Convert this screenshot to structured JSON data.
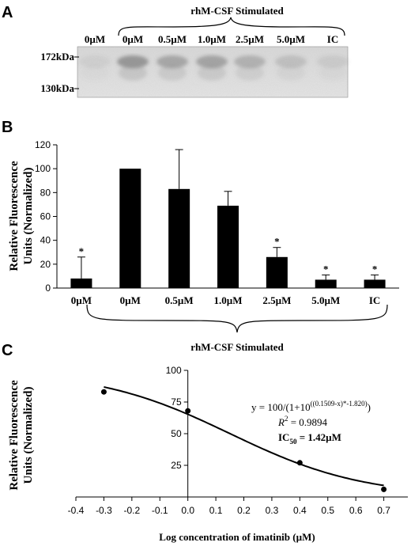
{
  "panelA": {
    "letter": "A",
    "group_title": "rhM-CSF Stimulated",
    "lane_labels": [
      "0µM",
      "0µM",
      "0.5µM",
      "1.0µM",
      "2.5µM",
      "5.0µM",
      "IC"
    ],
    "mw_markers": [
      "172kDa",
      "130kDa"
    ]
  },
  "panelB": {
    "letter": "B",
    "ylabel_line1": "Relative Fluorescence",
    "ylabel_line2": "Units (Normalized)",
    "group_title": "rhM-CSF Stimulated",
    "asterisk": "*"
  },
  "panelC": {
    "letter": "C",
    "ylabel_line1": "Relative Fluorescence",
    "ylabel_line2": "Units (Normalized)",
    "xlabel": "Log concentration of imatinib (µM)",
    "eq_prefix": "y = 100/(1+10",
    "eq_exponent": "((0.1509-x)*-1.820)",
    "eq_suffix": ")",
    "r2_label": "R",
    "r2_value": " = 0.9894",
    "ic50_label": "IC",
    "ic50_sub": "50",
    "ic50_value": " = 1.42µM"
  },
  "chart_data": [
    {
      "type": "bar",
      "categories": [
        "0µM",
        "0µM",
        "0.5µM",
        "1.0µM",
        "2.5µM",
        "5.0µM",
        "IC"
      ],
      "values": [
        8,
        100,
        83,
        69,
        26,
        7,
        7
      ],
      "error_plus": [
        18,
        0,
        33,
        12,
        8,
        4,
        4
      ],
      "significant": [
        true,
        false,
        false,
        false,
        true,
        true,
        true
      ],
      "ylim": [
        0,
        120
      ],
      "yticks": [
        0,
        20,
        40,
        60,
        80,
        100,
        120
      ],
      "ylabel": "Relative Fluorescence Units (Normalized)",
      "bar_color": "#000000"
    },
    {
      "type": "scatter",
      "x": [
        -0.3,
        0.0,
        0.4,
        0.7
      ],
      "y": [
        83,
        68,
        27,
        6
      ],
      "fit": "y = 100/(1+10^((0.1509-x)*-1.820))",
      "xlim": [
        -0.4,
        0.8
      ],
      "ylim": [
        0,
        100
      ],
      "xticks": [
        -0.4,
        -0.3,
        -0.2,
        -0.1,
        0.0,
        0.1,
        0.2,
        0.3,
        0.4,
        0.5,
        0.6,
        0.7,
        0.8
      ],
      "yticks": [
        25,
        50,
        75,
        100
      ],
      "xlabel": "Log concentration of imatinib (µM)",
      "ylabel": "Relative Fluorescence Units (Normalized)"
    }
  ]
}
